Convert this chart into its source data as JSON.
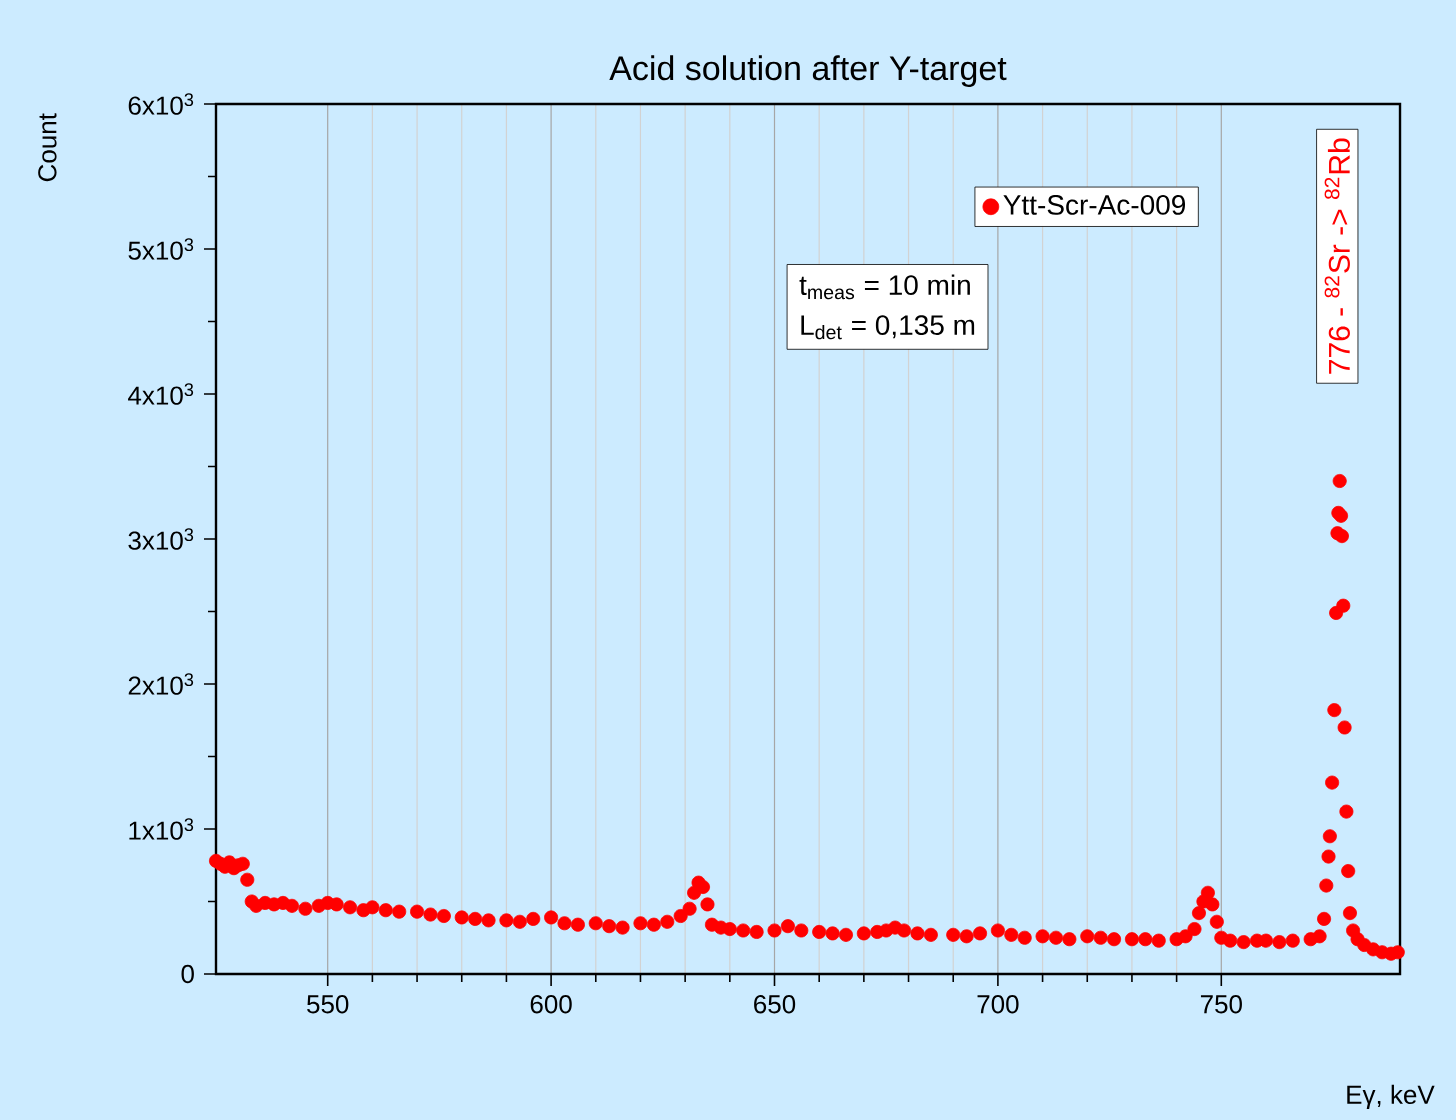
{
  "chart_data": {
    "type": "scatter",
    "title": "Acid solution after Y-target",
    "xlabel": "Eγ, keV",
    "ylabel": "Count",
    "x": [
      525,
      526,
      527,
      528,
      529,
      530,
      531,
      532,
      533,
      534,
      536,
      538,
      540,
      542,
      545,
      548,
      550,
      552,
      555,
      558,
      560,
      563,
      566,
      570,
      573,
      576,
      580,
      583,
      586,
      590,
      593,
      596,
      600,
      603,
      606,
      610,
      613,
      616,
      620,
      623,
      626,
      629,
      631,
      632,
      633,
      634,
      635,
      636,
      638,
      640,
      643,
      646,
      650,
      653,
      656,
      660,
      663,
      666,
      670,
      673,
      675,
      677,
      679,
      682,
      685,
      690,
      693,
      696,
      700,
      703,
      706,
      710,
      713,
      716,
      720,
      723,
      726,
      730,
      733,
      736,
      740,
      742,
      744,
      745,
      746,
      747,
      748,
      749,
      750,
      752,
      755,
      758,
      760,
      763,
      766,
      770,
      772,
      773,
      773.5,
      774,
      774.3,
      774.8,
      775.3,
      775.7,
      776,
      776.2,
      776.5,
      776.8,
      777,
      777.3,
      777.6,
      778,
      778.4,
      778.8,
      779.5,
      780.5,
      782,
      784,
      786,
      788,
      789.5
    ],
    "series": [
      {
        "name": "Ytt-Scr-Ac-009",
        "color": "#ff0000",
        "values": [
          780,
          760,
          740,
          770,
          730,
          750,
          760,
          650,
          500,
          470,
          490,
          480,
          490,
          470,
          450,
          470,
          490,
          480,
          460,
          440,
          460,
          440,
          430,
          430,
          410,
          400,
          390,
          380,
          370,
          370,
          360,
          380,
          390,
          350,
          340,
          350,
          330,
          320,
          350,
          340,
          360,
          400,
          450,
          560,
          630,
          600,
          480,
          340,
          320,
          310,
          300,
          290,
          300,
          330,
          300,
          290,
          280,
          270,
          280,
          290,
          300,
          320,
          300,
          280,
          270,
          270,
          260,
          280,
          300,
          270,
          250,
          260,
          250,
          240,
          260,
          250,
          240,
          240,
          240,
          230,
          240,
          260,
          310,
          420,
          500,
          560,
          480,
          360,
          250,
          230,
          220,
          230,
          230,
          220,
          230,
          240,
          260,
          380,
          610,
          810,
          950,
          1320,
          1820,
          2490,
          3040,
          3180,
          3400,
          3160,
          3020,
          2540,
          1700,
          1120,
          710,
          420,
          300,
          240,
          200,
          170,
          150,
          140,
          150
        ]
      }
    ],
    "xlim": [
      525,
      790
    ],
    "xticks": [
      550,
      600,
      650,
      700,
      750
    ],
    "ylim": [
      0,
      6000
    ],
    "yticks": [
      0,
      {
        "value": 1000,
        "label": "1x10$^{3}$"
      },
      {
        "value": 2000,
        "label": "2x10$^{3}$"
      },
      {
        "value": 3000,
        "label": "3x10$^{3}$"
      },
      {
        "value": 4000,
        "label": "4x10$^{3}$"
      },
      {
        "value": 5000,
        "label": "5x10$^{3}$"
      },
      {
        "value": 6000,
        "label": "6x10$^{3}$"
      }
    ],
    "grid": "x",
    "legend": "top right",
    "marker": "circle",
    "annotations": [
      "t$_{meas}$ = 10 min",
      "L$_{det}$ = 0,135 m",
      "776 - $^{82}$Sr -> $^{82}$Rb"
    ]
  }
}
